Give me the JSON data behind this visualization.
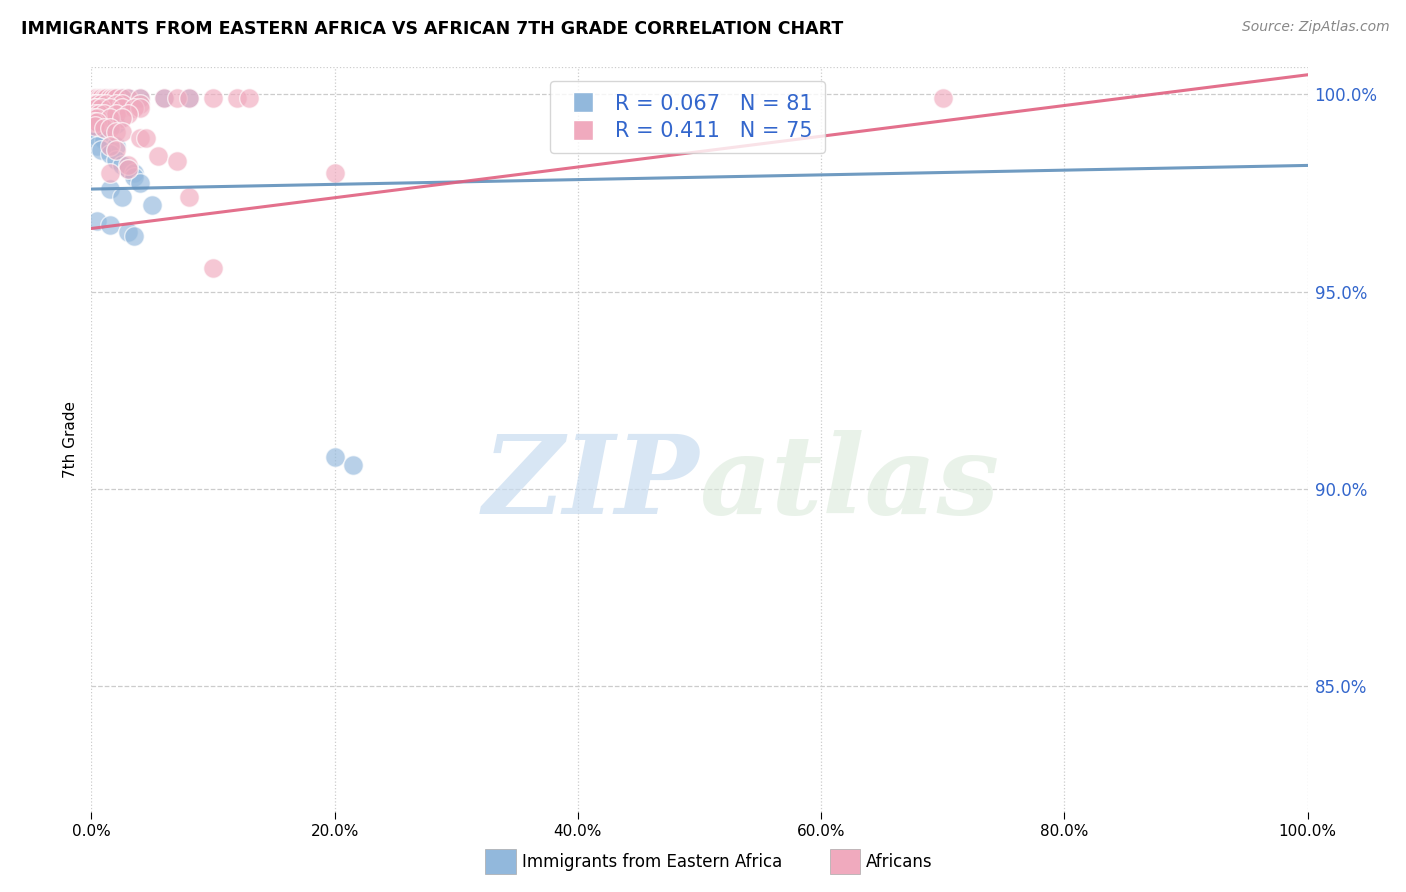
{
  "title": "IMMIGRANTS FROM EASTERN AFRICA VS AFRICAN 7TH GRADE CORRELATION CHART",
  "source": "Source: ZipAtlas.com",
  "ylabel": "7th Grade",
  "yticks": [
    1.0,
    0.95,
    0.9,
    0.85
  ],
  "ytick_labels": [
    "100.0%",
    "95.0%",
    "90.0%",
    "85.0%"
  ],
  "xtick_vals": [
    0.0,
    0.2,
    0.4,
    0.6,
    0.8,
    1.0
  ],
  "xtick_labels": [
    "0.0%",
    "20.0%",
    "40.0%",
    "60.0%",
    "80.0%",
    "100.0%"
  ],
  "xlim": [
    0.0,
    1.0
  ],
  "ylim": [
    0.818,
    1.007
  ],
  "blue_R": 0.067,
  "blue_N": 81,
  "pink_R": 0.411,
  "pink_N": 75,
  "legend_label_blue": "Immigrants from Eastern Africa",
  "legend_label_pink": "Africans",
  "watermark_zip": "ZIP",
  "watermark_atlas": "atlas",
  "blue_color": "#92B8DC",
  "pink_color": "#F0AABE",
  "blue_line_color": "#6090BB",
  "pink_line_color": "#E06080",
  "blue_scatter": [
    [
      0.002,
      0.999
    ],
    [
      0.004,
      0.999
    ],
    [
      0.005,
      0.999
    ],
    [
      0.006,
      0.999
    ],
    [
      0.008,
      0.999
    ],
    [
      0.009,
      0.999
    ],
    [
      0.01,
      0.999
    ],
    [
      0.011,
      0.999
    ],
    [
      0.013,
      0.999
    ],
    [
      0.015,
      0.999
    ],
    [
      0.016,
      0.999
    ],
    [
      0.017,
      0.999
    ],
    [
      0.02,
      0.999
    ],
    [
      0.022,
      0.999
    ],
    [
      0.025,
      0.999
    ],
    [
      0.03,
      0.999
    ],
    [
      0.04,
      0.999
    ],
    [
      0.06,
      0.999
    ],
    [
      0.08,
      0.999
    ],
    [
      0.002,
      0.998
    ],
    [
      0.003,
      0.998
    ],
    [
      0.004,
      0.998
    ],
    [
      0.005,
      0.998
    ],
    [
      0.006,
      0.998
    ],
    [
      0.008,
      0.998
    ],
    [
      0.01,
      0.998
    ],
    [
      0.012,
      0.998
    ],
    [
      0.002,
      0.9975
    ],
    [
      0.003,
      0.9975
    ],
    [
      0.004,
      0.9975
    ],
    [
      0.006,
      0.9975
    ],
    [
      0.008,
      0.9975
    ],
    [
      0.01,
      0.9975
    ],
    [
      0.015,
      0.9975
    ],
    [
      0.002,
      0.9965
    ],
    [
      0.004,
      0.9965
    ],
    [
      0.006,
      0.9965
    ],
    [
      0.008,
      0.9965
    ],
    [
      0.002,
      0.9955
    ],
    [
      0.004,
      0.9955
    ],
    [
      0.006,
      0.9955
    ],
    [
      0.002,
      0.9945
    ],
    [
      0.004,
      0.9945
    ],
    [
      0.002,
      0.9935
    ],
    [
      0.004,
      0.9935
    ],
    [
      0.002,
      0.9925
    ],
    [
      0.004,
      0.9925
    ],
    [
      0.015,
      0.9925
    ],
    [
      0.02,
      0.9925
    ],
    [
      0.003,
      0.991
    ],
    [
      0.005,
      0.991
    ],
    [
      0.004,
      0.9895
    ],
    [
      0.01,
      0.9885
    ],
    [
      0.005,
      0.987
    ],
    [
      0.02,
      0.987
    ],
    [
      0.008,
      0.986
    ],
    [
      0.015,
      0.985
    ],
    [
      0.02,
      0.9835
    ],
    [
      0.025,
      0.982
    ],
    [
      0.03,
      0.981
    ],
    [
      0.035,
      0.98
    ],
    [
      0.035,
      0.979
    ],
    [
      0.04,
      0.9775
    ],
    [
      0.015,
      0.976
    ],
    [
      0.025,
      0.974
    ],
    [
      0.05,
      0.972
    ],
    [
      0.005,
      0.968
    ],
    [
      0.015,
      0.967
    ],
    [
      0.03,
      0.965
    ],
    [
      0.035,
      0.964
    ],
    [
      0.2,
      0.908
    ],
    [
      0.215,
      0.906
    ]
  ],
  "pink_scatter": [
    [
      0.002,
      0.999
    ],
    [
      0.003,
      0.999
    ],
    [
      0.004,
      0.999
    ],
    [
      0.006,
      0.999
    ],
    [
      0.008,
      0.999
    ],
    [
      0.01,
      0.999
    ],
    [
      0.012,
      0.999
    ],
    [
      0.015,
      0.999
    ],
    [
      0.018,
      0.999
    ],
    [
      0.02,
      0.999
    ],
    [
      0.025,
      0.999
    ],
    [
      0.03,
      0.999
    ],
    [
      0.04,
      0.999
    ],
    [
      0.06,
      0.999
    ],
    [
      0.07,
      0.999
    ],
    [
      0.08,
      0.999
    ],
    [
      0.1,
      0.999
    ],
    [
      0.12,
      0.999
    ],
    [
      0.13,
      0.999
    ],
    [
      0.002,
      0.9975
    ],
    [
      0.003,
      0.9975
    ],
    [
      0.005,
      0.9975
    ],
    [
      0.008,
      0.9975
    ],
    [
      0.012,
      0.9975
    ],
    [
      0.02,
      0.9975
    ],
    [
      0.025,
      0.9975
    ],
    [
      0.04,
      0.9975
    ],
    [
      0.002,
      0.9965
    ],
    [
      0.004,
      0.9965
    ],
    [
      0.008,
      0.9965
    ],
    [
      0.015,
      0.9965
    ],
    [
      0.025,
      0.9965
    ],
    [
      0.035,
      0.9965
    ],
    [
      0.04,
      0.9965
    ],
    [
      0.003,
      0.995
    ],
    [
      0.006,
      0.995
    ],
    [
      0.01,
      0.995
    ],
    [
      0.02,
      0.995
    ],
    [
      0.03,
      0.995
    ],
    [
      0.002,
      0.994
    ],
    [
      0.005,
      0.994
    ],
    [
      0.015,
      0.994
    ],
    [
      0.025,
      0.994
    ],
    [
      0.002,
      0.993
    ],
    [
      0.005,
      0.993
    ],
    [
      0.003,
      0.992
    ],
    [
      0.01,
      0.9915
    ],
    [
      0.015,
      0.9915
    ],
    [
      0.02,
      0.9905
    ],
    [
      0.025,
      0.9905
    ],
    [
      0.04,
      0.989
    ],
    [
      0.045,
      0.989
    ],
    [
      0.015,
      0.987
    ],
    [
      0.02,
      0.986
    ],
    [
      0.055,
      0.9845
    ],
    [
      0.07,
      0.983
    ],
    [
      0.03,
      0.982
    ],
    [
      0.03,
      0.981
    ],
    [
      0.2,
      0.98
    ],
    [
      0.7,
      0.999
    ],
    [
      0.08,
      0.974
    ],
    [
      0.015,
      0.98
    ],
    [
      0.1,
      0.956
    ]
  ],
  "blue_trend_x0": 0.0,
  "blue_trend_x1": 1.0,
  "blue_trend_y0": 0.976,
  "blue_trend_y1": 0.982,
  "pink_trend_x0": 0.0,
  "pink_trend_x1": 1.0,
  "pink_trend_y0": 0.966,
  "pink_trend_y1": 1.005
}
